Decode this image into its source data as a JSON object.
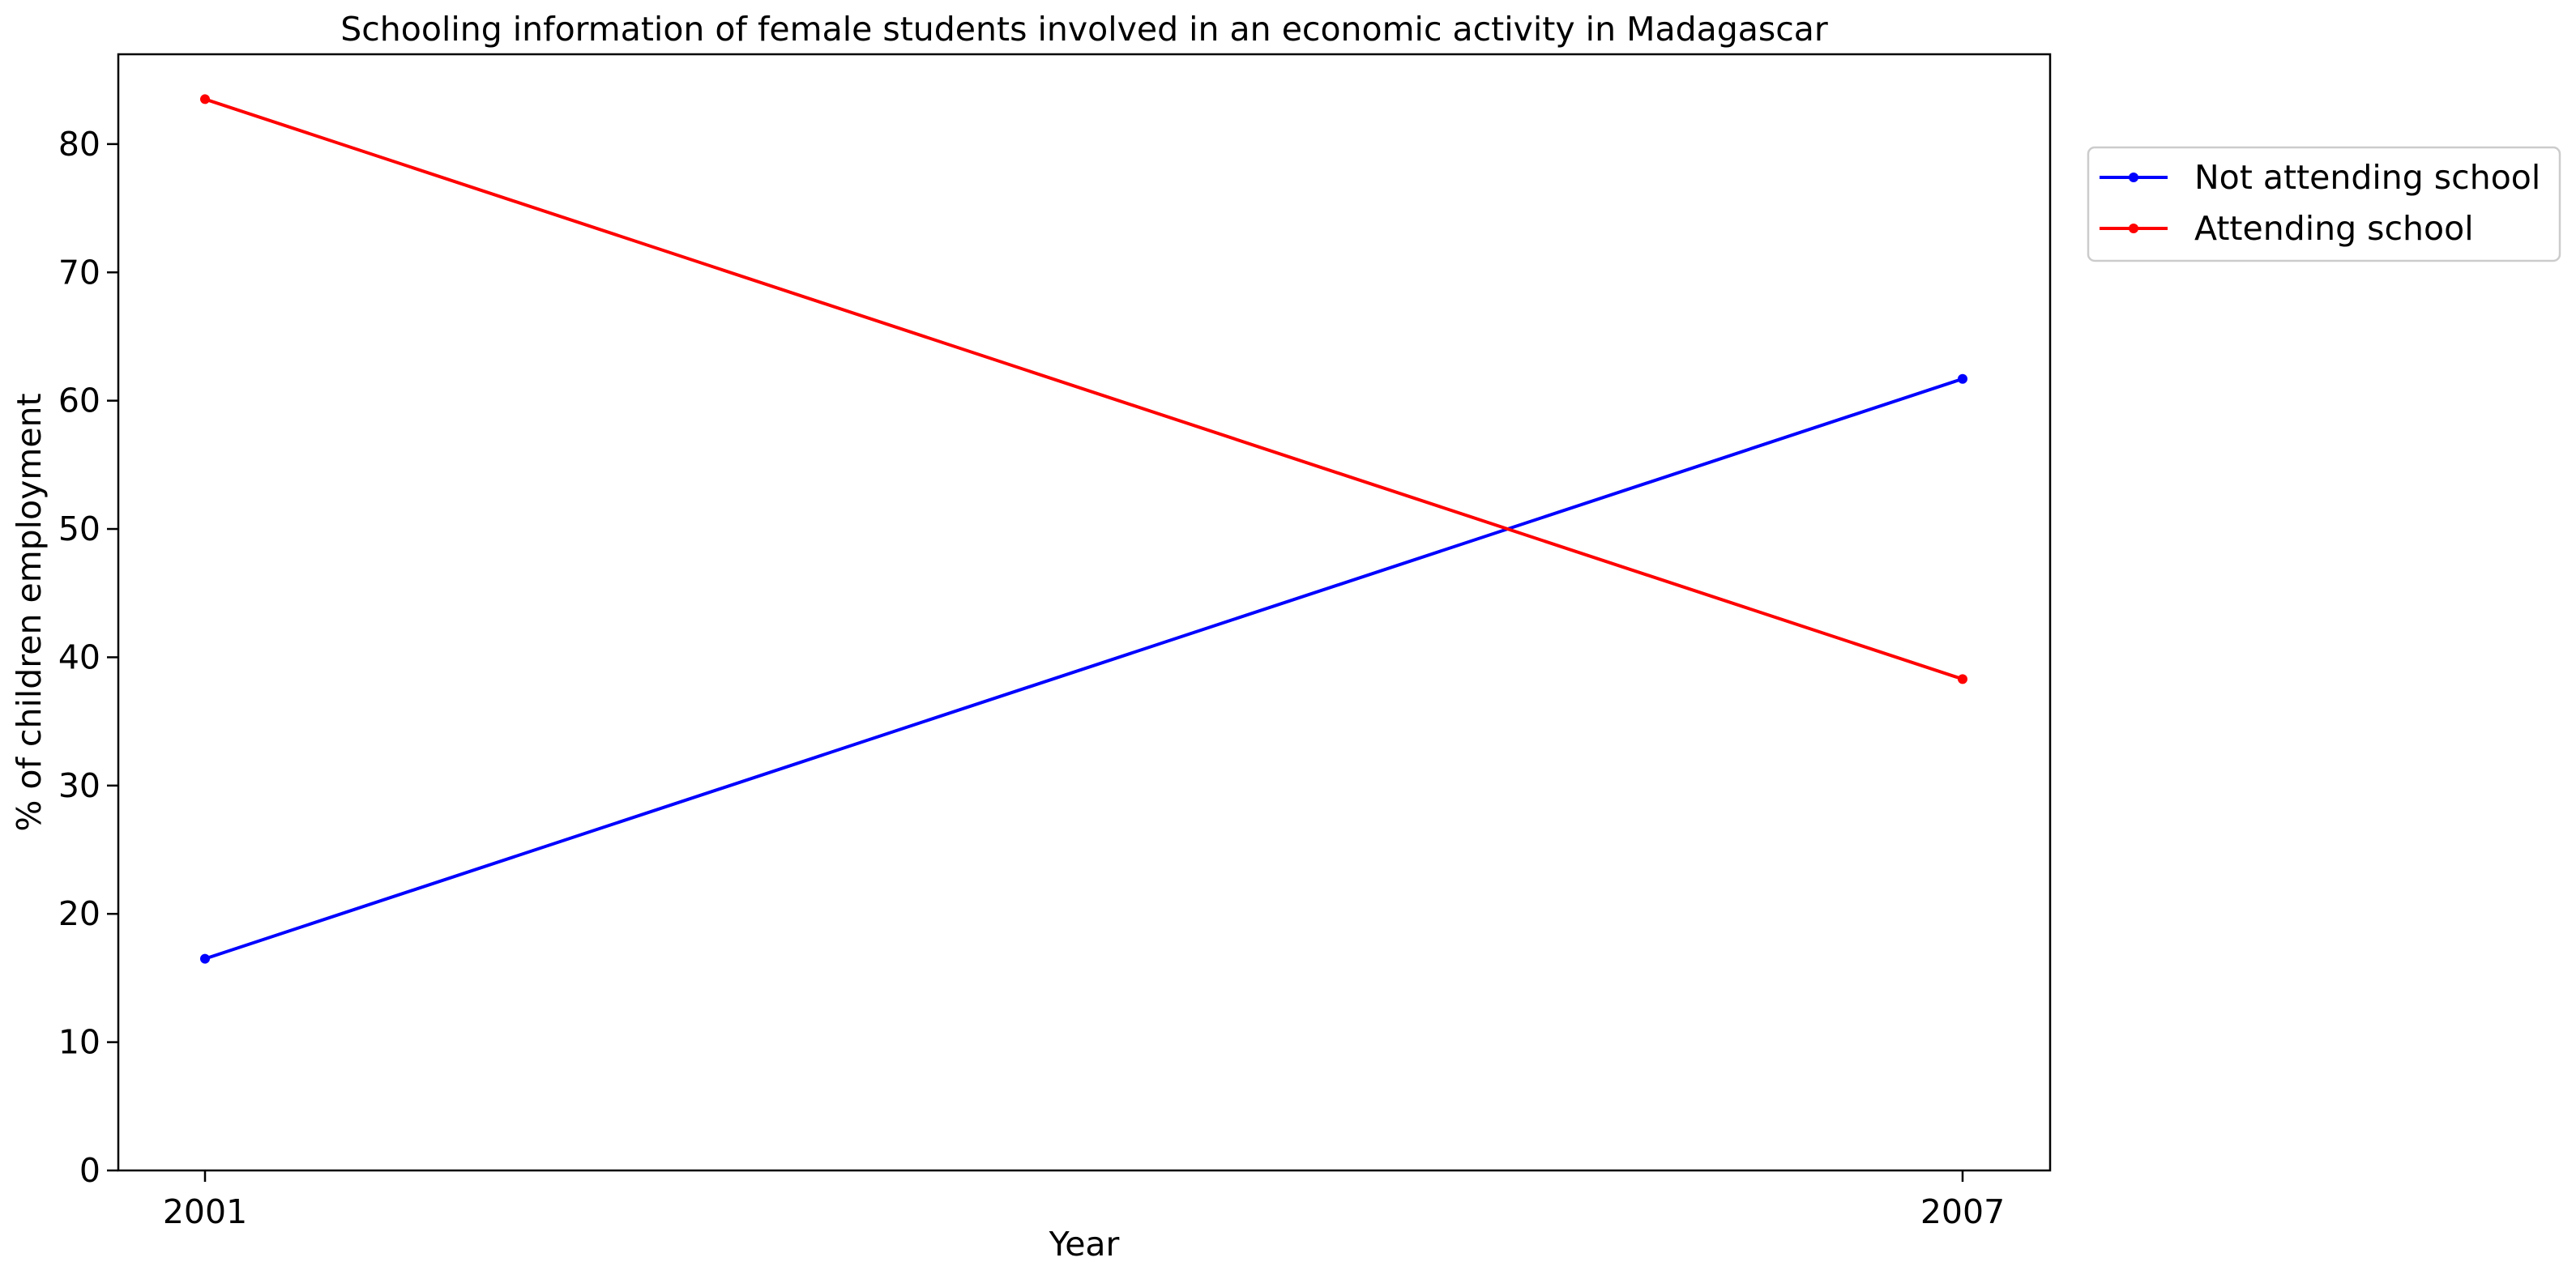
{
  "chart_data": {
    "type": "line",
    "title": "Schooling information of female students involved in an economic activity in Madagascar",
    "xlabel": "Year",
    "ylabel": "% of children employment",
    "x": [
      "2001",
      "2007"
    ],
    "ylim": [
      0,
      87
    ],
    "yticks": [
      0,
      10,
      20,
      30,
      40,
      50,
      60,
      70,
      80
    ],
    "grid": false,
    "legend_position": "outside-top-right",
    "series": [
      {
        "name": "Not attending school",
        "color": "#0000ff",
        "values": [
          16.5,
          61.7
        ]
      },
      {
        "name": "Attending school",
        "color": "#ff0000",
        "values": [
          83.5,
          38.3
        ]
      }
    ]
  }
}
